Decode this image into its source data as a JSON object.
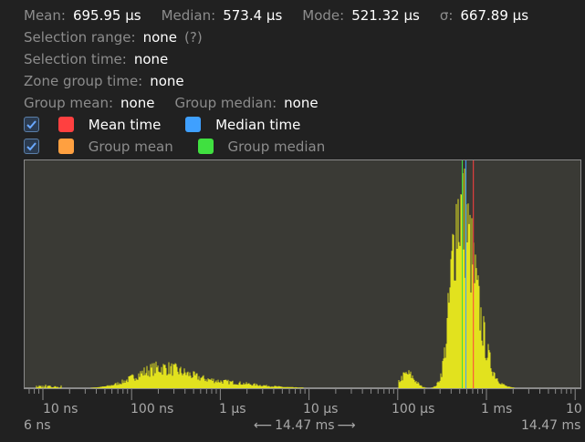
{
  "stats": {
    "mean_label": "Mean:",
    "mean_value": "695.95 μs",
    "median_label": "Median:",
    "median_value": "573.4 μs",
    "mode_label": "Mode:",
    "mode_value": "521.32 μs",
    "sigma_label": "σ:",
    "sigma_value": "667.89 μs"
  },
  "selection": {
    "range_label": "Selection range:",
    "range_value": "none",
    "range_help": "(?)",
    "time_label": "Selection time:",
    "time_value": "none"
  },
  "zone_group": {
    "label": "Zone group time:",
    "value": "none"
  },
  "group": {
    "mean_label": "Group mean:",
    "mean_value": "none",
    "median_label": "Group median:",
    "median_value": "none"
  },
  "legend": {
    "row1_checked": true,
    "mean_label": "Mean time",
    "mean_color": "#ff4040",
    "median_label": "Median time",
    "median_color": "#3fa0ff",
    "row2_checked": true,
    "group_mean_label": "Group mean",
    "group_mean_color": "#ffa040",
    "group_median_label": "Group median",
    "group_median_color": "#40e040"
  },
  "histogram": {
    "bar_color": "#e2e21e",
    "scale": "log",
    "markers": {
      "mode_us": 521.32,
      "median_us": 573.4,
      "mean_us": 695.95
    }
  },
  "axis": {
    "tick_labels": [
      "10 ns",
      "100 ns",
      "1 μs",
      "10 μs",
      "100 μs",
      "1 ms",
      "10"
    ],
    "min_label": "6 ns",
    "range_label": "14.47 ms",
    "max_label": "14.47 ms"
  }
}
